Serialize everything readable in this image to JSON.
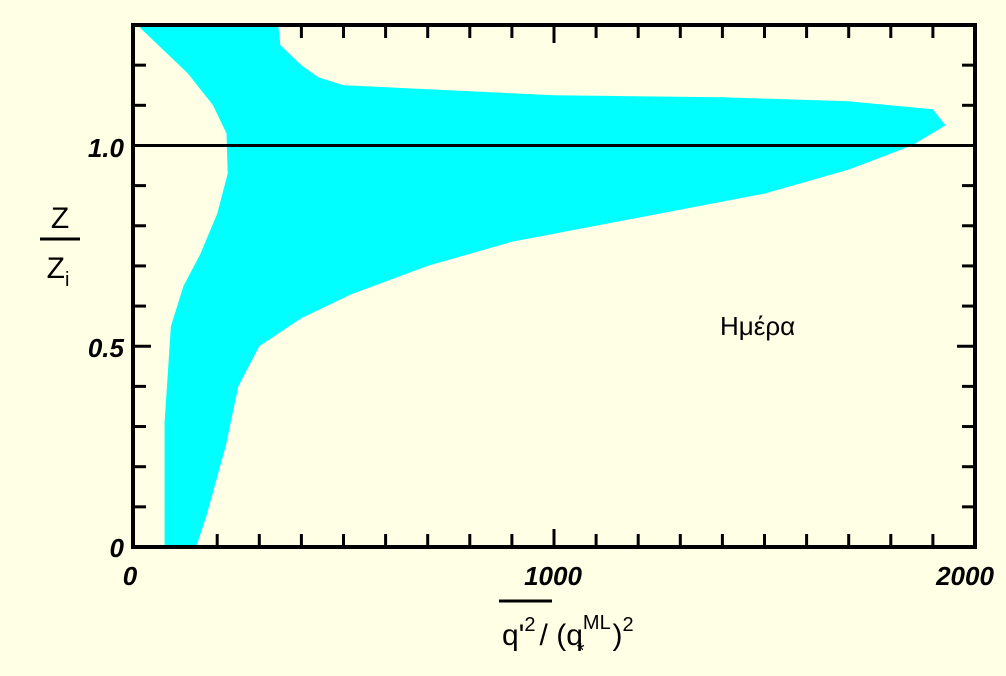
{
  "chart_data": {
    "type": "area",
    "x_axis": {
      "range": [
        0,
        2000
      ],
      "tick_labels": [
        "0",
        "1000",
        "2000"
      ],
      "label_base": "q'",
      "label_base_sup": "2",
      "label_rest": "/ (q",
      "label_rest_sup": "ML",
      "label_rest_sub": "*",
      "label_close": ")",
      "label_close_sup": "2"
    },
    "y_axis": {
      "range": [
        0,
        1.3
      ],
      "tick_labels": [
        "0",
        "0.5",
        "1.0"
      ],
      "label_numerator": "Z",
      "label_denominator": "Z",
      "label_denominator_sub": "i"
    },
    "reference_line_y": 1.0,
    "annotation": "Ημέρα",
    "fill_color": "#00ffff",
    "band": {
      "left_edge": [
        [
          75,
          0
        ],
        [
          75,
          0.31
        ],
        [
          90,
          0.55
        ],
        [
          120,
          0.65
        ],
        [
          160,
          0.73
        ],
        [
          200,
          0.83
        ],
        [
          225,
          0.93
        ],
        [
          222,
          1.03
        ],
        [
          190,
          1.1
        ],
        [
          130,
          1.18
        ],
        [
          10,
          1.3
        ]
      ],
      "right_edge": [
        [
          150,
          0
        ],
        [
          175,
          0.08
        ],
        [
          220,
          0.25
        ],
        [
          250,
          0.4
        ],
        [
          300,
          0.5
        ],
        [
          400,
          0.57
        ],
        [
          520,
          0.63
        ],
        [
          700,
          0.7
        ],
        [
          900,
          0.76
        ],
        [
          1200,
          0.82
        ],
        [
          1500,
          0.88
        ],
        [
          1700,
          0.94
        ],
        [
          1850,
          1.0
        ],
        [
          1930,
          1.05
        ],
        [
          1900,
          1.09
        ],
        [
          1700,
          1.11
        ],
        [
          1400,
          1.12
        ],
        [
          1000,
          1.125
        ],
        [
          700,
          1.14
        ],
        [
          500,
          1.15
        ],
        [
          440,
          1.17
        ],
        [
          400,
          1.2
        ],
        [
          350,
          1.25
        ],
        [
          345,
          1.3
        ]
      ]
    }
  }
}
